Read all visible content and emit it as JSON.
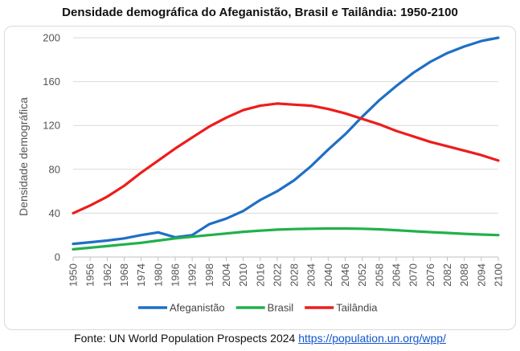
{
  "source": {
    "prefix": "Fonte: UN World Population Prospects 2024 ",
    "link_text": "https://population.un.org/wpp/"
  },
  "chart_data": {
    "type": "line",
    "title": "Densidade demográfica do Afeganistão, Brasil e Tailândia: 1950-2100",
    "xlabel": "",
    "ylabel": "Densidade demográfica",
    "ylim": [
      0,
      200
    ],
    "yticks": [
      0,
      40,
      80,
      120,
      160,
      200
    ],
    "grid": true,
    "legend_position": "bottom",
    "x_tick_labels": [
      "1950",
      "1956",
      "1962",
      "1968",
      "1974",
      "1980",
      "1986",
      "1992",
      "1998",
      "2004",
      "2010",
      "2016",
      "2022",
      "2028",
      "2034",
      "2040",
      "2046",
      "2052",
      "2058",
      "2064",
      "2070",
      "2076",
      "2082",
      "2088",
      "2094",
      "2100"
    ],
    "x": [
      1950,
      1956,
      1962,
      1968,
      1974,
      1980,
      1986,
      1992,
      1998,
      2004,
      2010,
      2016,
      2022,
      2028,
      2034,
      2040,
      2046,
      2052,
      2058,
      2064,
      2070,
      2076,
      2082,
      2088,
      2094,
      2100
    ],
    "series": [
      {
        "name": "Afeganistão",
        "color": "#1f6fc5",
        "values": [
          12,
          13.5,
          15,
          17,
          20,
          22.5,
          18,
          20,
          30,
          35,
          42,
          52,
          60,
          70,
          83,
          98,
          112,
          128,
          143,
          156,
          168,
          178,
          186,
          192,
          197,
          200
        ]
      },
      {
        "name": "Brasil",
        "color": "#22b04b",
        "values": [
          7,
          8.5,
          10,
          11.5,
          13,
          15,
          17,
          18.5,
          20,
          21.5,
          23,
          24,
          25,
          25.5,
          25.8,
          26,
          26,
          25.8,
          25.3,
          24.5,
          23.5,
          22.7,
          22,
          21.2,
          20.5,
          20
        ]
      },
      {
        "name": "Tailândia",
        "color": "#ee1c1c",
        "values": [
          40,
          47,
          55,
          65,
          77,
          88,
          99,
          109,
          119,
          127,
          134,
          138,
          140,
          139,
          138,
          135,
          131,
          126,
          121,
          115,
          110,
          105,
          101,
          97,
          93,
          88
        ]
      }
    ]
  }
}
